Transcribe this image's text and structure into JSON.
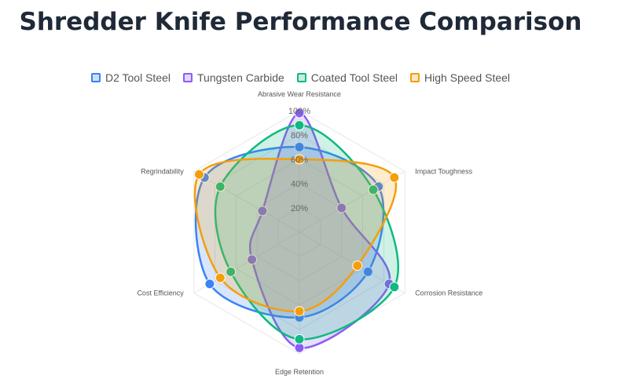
{
  "title": "Shredder Knife Performance Comparison",
  "colors": {
    "d2": "#3b82f6",
    "tungsten": "#8b5cf6",
    "coated": "#10b981",
    "hss": "#f59e0b"
  },
  "chart_data": {
    "type": "radar",
    "title": "Shredder Knife Performance Comparison",
    "axes": [
      "Abrasive Wear Resistance",
      "Impact Toughness",
      "Corrosion Resistance",
      "Edge Retention",
      "Cost Efficiency",
      "Regrindability"
    ],
    "ticks": [
      "20%",
      "40%",
      "60%",
      "80%",
      "100%"
    ],
    "rlim": [
      0,
      100
    ],
    "legend_position": "top",
    "series": [
      {
        "name": "D2 Tool Steel",
        "color": "#3b82f6",
        "values": [
          70,
          75,
          65,
          70,
          85,
          90
        ]
      },
      {
        "name": "Tungsten Carbide",
        "color": "#8b5cf6",
        "values": [
          98,
          40,
          85,
          95,
          45,
          35
        ]
      },
      {
        "name": "Coated Tool Steel",
        "color": "#10b981",
        "values": [
          88,
          70,
          90,
          88,
          65,
          75
        ]
      },
      {
        "name": "High Speed Steel",
        "color": "#f59e0b",
        "values": [
          60,
          90,
          55,
          65,
          75,
          95
        ]
      }
    ]
  }
}
